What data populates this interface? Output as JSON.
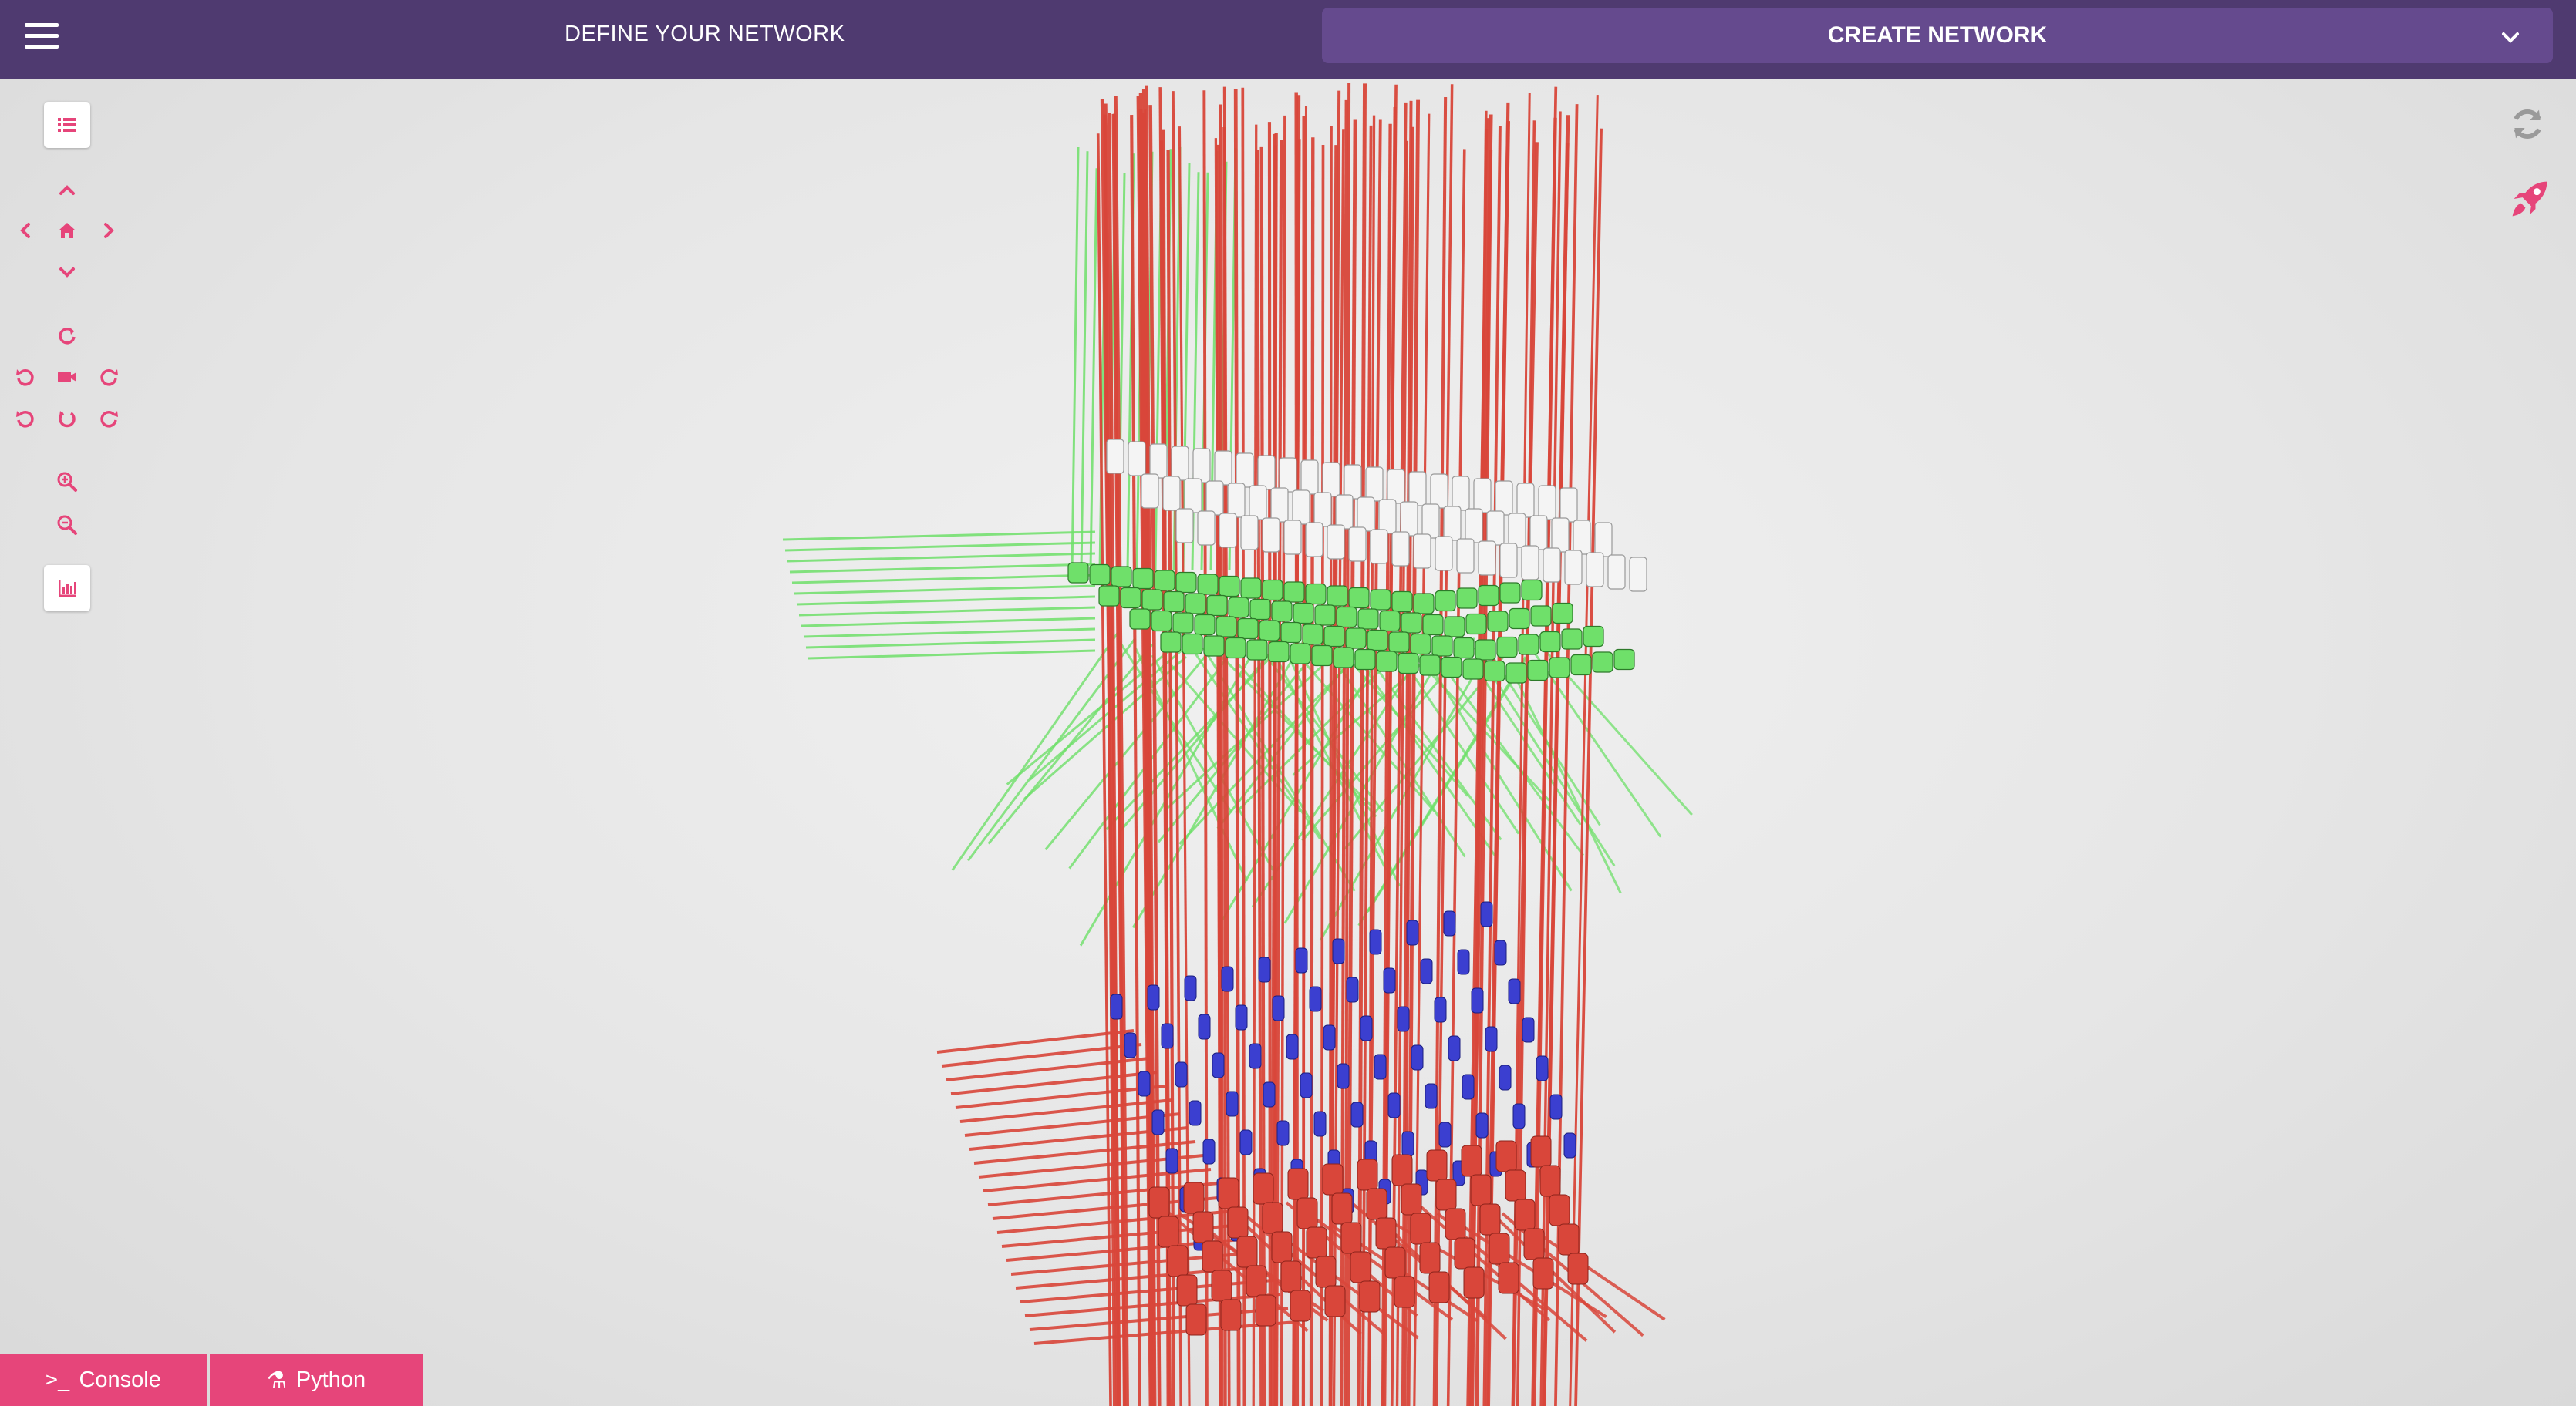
{
  "header": {
    "title": "DEFINE YOUR NETWORK",
    "create_label": "CREATE NETWORK"
  },
  "toolbar": {
    "icons": [
      "list-icon",
      "pan-up-icon",
      "pan-left-icon",
      "home-icon",
      "pan-right-icon",
      "pan-down-icon",
      "rotate-reset-icon",
      "rotate-ccw-icon",
      "camera-icon",
      "rotate-cw-icon",
      "rotate-ccw-2-icon",
      "rotate-center-icon",
      "rotate-cw-2-icon",
      "zoom-in-icon",
      "zoom-out-icon",
      "bar-chart-icon"
    ]
  },
  "right_icons": [
    "refresh-icon",
    "rocket-icon"
  ],
  "colors": {
    "header_bg": "#4f3a70",
    "panel_bg": "#654a8e",
    "accent": "#e6457a",
    "red_cells": "#d9463a",
    "green_cells": "#6fe06a",
    "blue_cells": "#3b3fd0",
    "white_cells": "#f4f4f4"
  },
  "tabs": {
    "console": {
      "glyph": ">_",
      "label": "Console"
    },
    "python": {
      "glyph": "⚗",
      "label": "Python"
    }
  }
}
